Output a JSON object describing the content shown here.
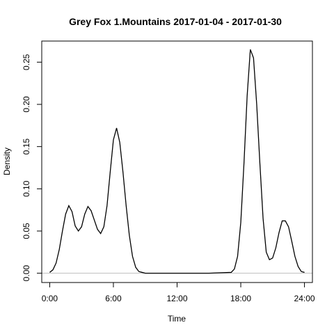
{
  "chart_data": {
    "type": "line",
    "title": "Grey Fox 1.Mountains 2017-01-04 - 2017-01-30",
    "xlabel": "Time",
    "ylabel": "Density",
    "xlim": [
      -0.75,
      24.75
    ],
    "ylim": [
      -0.011,
      0.275
    ],
    "x_ticks": [
      {
        "value": 0,
        "label": "0:00"
      },
      {
        "value": 6,
        "label": "6:00"
      },
      {
        "value": 12,
        "label": "12:00"
      },
      {
        "value": 18,
        "label": "18:00"
      },
      {
        "value": 24,
        "label": "24:00"
      }
    ],
    "y_ticks": [
      {
        "value": 0.0,
        "label": "0.00"
      },
      {
        "value": 0.05,
        "label": "0.05"
      },
      {
        "value": 0.1,
        "label": "0.10"
      },
      {
        "value": 0.15,
        "label": "0.15"
      },
      {
        "value": 0.2,
        "label": "0.20"
      },
      {
        "value": 0.25,
        "label": "0.25"
      }
    ],
    "baseline": {
      "value": 0,
      "color": "#bebebe"
    },
    "grid": false,
    "line_color": "#000000",
    "series": [
      {
        "x": [
          0,
          0.3,
          0.6,
          0.9,
          1.2,
          1.5,
          1.8,
          2.1,
          2.4,
          2.7,
          3.0,
          3.3,
          3.6,
          3.9,
          4.2,
          4.5,
          4.8,
          5.1,
          5.4,
          5.7,
          6.0,
          6.3,
          6.6,
          6.9,
          7.2,
          7.5,
          7.8,
          8.1,
          8.4,
          8.7,
          9.0,
          12.0,
          15.0,
          17.1,
          17.4,
          17.7,
          18.0,
          18.3,
          18.6,
          18.9,
          19.2,
          19.5,
          19.8,
          20.1,
          20.4,
          20.7,
          21.0,
          21.3,
          21.6,
          21.9,
          22.2,
          22.5,
          22.8,
          23.1,
          23.4,
          23.7,
          24.0
        ],
        "y": [
          0.001,
          0.004,
          0.012,
          0.028,
          0.05,
          0.07,
          0.08,
          0.073,
          0.056,
          0.05,
          0.055,
          0.07,
          0.079,
          0.074,
          0.063,
          0.052,
          0.047,
          0.055,
          0.08,
          0.12,
          0.158,
          0.172,
          0.155,
          0.12,
          0.08,
          0.045,
          0.02,
          0.007,
          0.002,
          0.001,
          0.0,
          0.0,
          0.0,
          0.001,
          0.005,
          0.02,
          0.06,
          0.13,
          0.21,
          0.265,
          0.255,
          0.2,
          0.13,
          0.065,
          0.025,
          0.016,
          0.018,
          0.03,
          0.048,
          0.062,
          0.062,
          0.055,
          0.038,
          0.02,
          0.008,
          0.002,
          0.001
        ]
      }
    ]
  }
}
